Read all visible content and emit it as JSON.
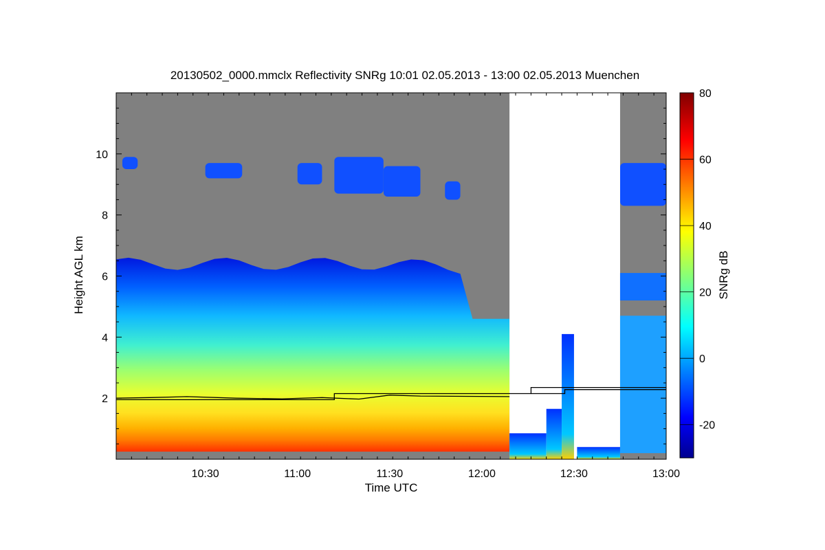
{
  "chart_data": {
    "type": "heatmap",
    "title": "20130502_0000.mmclx Reflectivity SNRg   10:01 02.05.2013 - 13:00 02.05.2013 Muenchen",
    "xlabel": "Time UTC",
    "ylabel": "Height AGL km",
    "x_range_minutes": [
      601,
      780
    ],
    "y_range_km": [
      0,
      12
    ],
    "x_ticks": [
      {
        "minute": 630,
        "label": "10:30"
      },
      {
        "minute": 660,
        "label": "11:00"
      },
      {
        "minute": 690,
        "label": "11:30"
      },
      {
        "minute": 720,
        "label": "12:00"
      },
      {
        "minute": 750,
        "label": "12:30"
      },
      {
        "minute": 780,
        "label": "13:00"
      }
    ],
    "y_ticks": [
      {
        "value": 2,
        "label": "2"
      },
      {
        "value": 4,
        "label": "4"
      },
      {
        "value": 6,
        "label": "6"
      },
      {
        "value": 8,
        "label": "8"
      },
      {
        "value": 10,
        "label": "10"
      }
    ],
    "colorbar": {
      "label": "SNRg dB",
      "range": [
        -30,
        80
      ],
      "ticks": [
        {
          "value": -20,
          "label": "-20"
        },
        {
          "value": 0,
          "label": "0"
        },
        {
          "value": 20,
          "label": "20"
        },
        {
          "value": 40,
          "label": "40"
        },
        {
          "value": 60,
          "label": "60"
        },
        {
          "value": 80,
          "label": "80"
        }
      ],
      "colormap": "jet"
    },
    "colors": {
      "no_signal": "#808080",
      "missing_data": "#ffffff",
      "line": "#000000"
    },
    "data_gaps_minutes": [
      [
        729,
        765
      ]
    ],
    "cloud_base_line": [
      {
        "t": 601,
        "h": 2.0
      },
      {
        "t": 612,
        "h": 2.02
      },
      {
        "t": 624,
        "h": 2.05
      },
      {
        "t": 640,
        "h": 2.0
      },
      {
        "t": 655,
        "h": 1.98
      },
      {
        "t": 668,
        "h": 2.02
      },
      {
        "t": 680,
        "h": 1.97
      },
      {
        "t": 690,
        "h": 2.1
      },
      {
        "t": 700,
        "h": 2.07
      },
      {
        "t": 729,
        "h": 2.05
      }
    ],
    "step_line_1": [
      {
        "t": 601,
        "h": 1.95
      },
      {
        "t": 672,
        "h": 1.95
      },
      {
        "t": 672,
        "h": 2.15
      },
      {
        "t": 736,
        "h": 2.15
      },
      {
        "t": 736,
        "h": 2.35
      },
      {
        "t": 780,
        "h": 2.35
      }
    ],
    "step_line_2": [
      {
        "t": 736,
        "h": 2.15
      },
      {
        "t": 747,
        "h": 2.15
      },
      {
        "t": 747,
        "h": 2.28
      },
      {
        "t": 780,
        "h": 2.28
      }
    ]
  }
}
